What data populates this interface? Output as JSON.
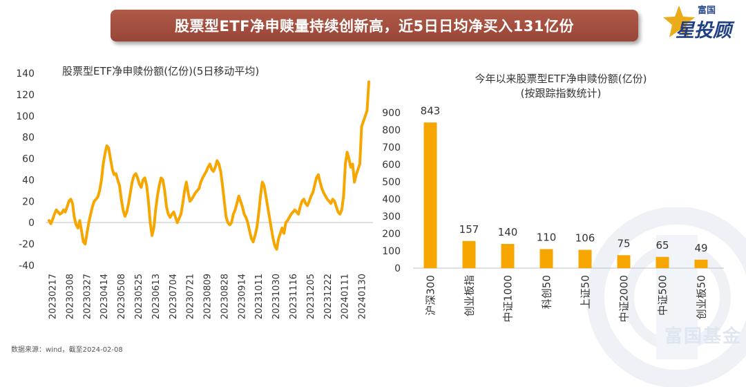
{
  "banner": {
    "title": "股票型ETF净申赎量持续创新高，近5日日均净买入131亿份"
  },
  "logo": {
    "small": "富国",
    "big": "星投顾"
  },
  "watermark": {
    "text": "富国基金"
  },
  "source": "数据来源：wind，截至2024-02-08",
  "colors": {
    "series": "#f7a600",
    "banner": "#a34f40",
    "axis": "#bfbfbf"
  },
  "chart_data": [
    {
      "type": "line",
      "title": "股票型ETF净申赎份额(亿份)(5日移动平均)",
      "ylim": [
        -40,
        140
      ],
      "yticks": [
        -40,
        -20,
        0,
        20,
        40,
        60,
        80,
        100,
        120,
        140
      ],
      "xtick_labels": [
        "20230217",
        "20230308",
        "20230327",
        "20230414",
        "20230508",
        "20230525",
        "20230613",
        "20230704",
        "20230721",
        "20230809",
        "20230828",
        "20230914",
        "20231011",
        "20231030",
        "20231116",
        "20231205",
        "20231222",
        "20240111",
        "20240130"
      ],
      "values": [
        2,
        -1,
        3,
        8,
        12,
        10,
        8,
        9,
        12,
        10,
        15,
        20,
        22,
        18,
        5,
        -2,
        -5,
        2,
        -8,
        -18,
        -20,
        -10,
        0,
        8,
        15,
        20,
        22,
        24,
        30,
        40,
        55,
        65,
        72,
        70,
        60,
        50,
        45,
        46,
        40,
        35,
        22,
        12,
        6,
        10,
        18,
        28,
        38,
        44,
        46,
        42,
        36,
        33,
        40,
        42,
        35,
        20,
        0,
        -12,
        -5,
        12,
        25,
        35,
        42,
        40,
        30,
        15,
        8,
        5,
        8,
        10,
        5,
        0,
        4,
        8,
        18,
        30,
        38,
        28,
        20,
        22,
        25,
        28,
        30,
        32,
        38,
        42,
        45,
        48,
        52,
        55,
        50,
        48,
        52,
        58,
        55,
        48,
        35,
        20,
        5,
        0,
        -2,
        0,
        8,
        12,
        18,
        25,
        20,
        15,
        8,
        5,
        0,
        -8,
        -15,
        -18,
        -12,
        -5,
        8,
        25,
        38,
        35,
        25,
        15,
        5,
        -5,
        -15,
        -22,
        -25,
        -15,
        -10,
        -5,
        -10,
        0,
        2,
        5,
        8,
        10,
        12,
        10,
        8,
        15,
        20,
        22,
        18,
        16,
        20,
        25,
        28,
        35,
        42,
        45,
        38,
        32,
        28,
        25,
        22,
        20,
        18,
        22,
        20,
        15,
        10,
        8,
        12,
        25,
        55,
        66,
        60,
        52,
        55,
        38,
        45,
        50,
        55,
        90,
        95,
        100,
        105,
        132
      ]
    },
    {
      "type": "bar",
      "title": "今年以来股票型ETF净申赎份额(亿份)",
      "subtitle": "(按跟踪指数统计)",
      "categories": [
        "沪深300",
        "创业板指",
        "中证1000",
        "科创50",
        "上证50",
        "中证2000",
        "中证500",
        "创业板50"
      ],
      "values": [
        843,
        157,
        140,
        110,
        106,
        75,
        65,
        49
      ],
      "ylim": [
        0,
        900
      ],
      "yticks": [
        0,
        100,
        200,
        300,
        400,
        500,
        600,
        700,
        800,
        900
      ]
    }
  ]
}
